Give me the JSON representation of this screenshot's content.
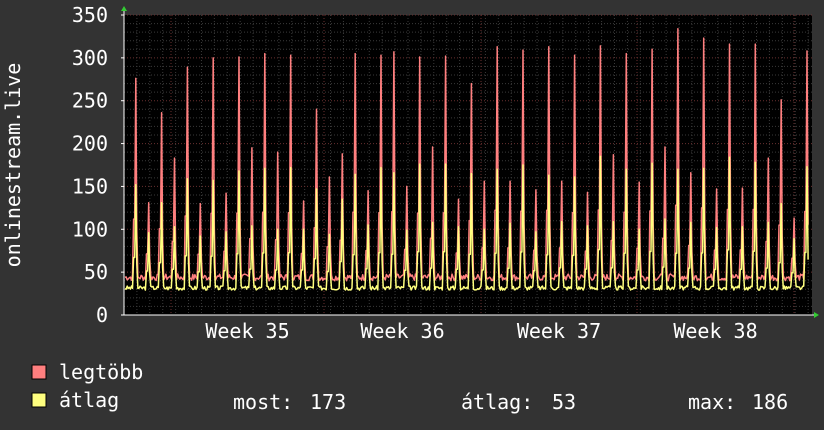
{
  "chart_data": {
    "type": "line",
    "ylabel": "onlinestream.live",
    "ylim": [
      0,
      350
    ],
    "yticks": [
      0,
      50,
      100,
      150,
      200,
      250,
      300,
      350
    ],
    "x_tick_labels": [
      "Week 35",
      "Week 36",
      "Week 37",
      "Week 38"
    ],
    "grid": true,
    "legend_placement": "bottom-left",
    "series": [
      {
        "name": "legtöbb",
        "color": "#ff7f7f",
        "daily_peaks": [
          276,
          131,
          236,
          183,
          289,
          130,
          300,
          142,
          301,
          195,
          305,
          190,
          303,
          133,
          240,
          161,
          188,
          305,
          145,
          303,
          307,
          150,
          301,
          196,
          302,
          135,
          270,
          156,
          313,
          156,
          309,
          146,
          313,
          156,
          303,
          143,
          314,
          187,
          305,
          155,
          310,
          196,
          334,
          166,
          323,
          147,
          316,
          148,
          316,
          183,
          251,
          113,
          308
        ]
      },
      {
        "name": "átlag",
        "color": "#ffff7f",
        "daily_peaks": [
          152,
          96,
          131,
          103,
          159,
          92,
          157,
          97,
          168,
          104,
          171,
          100,
          172,
          100,
          147,
          94,
          135,
          164,
          105,
          172,
          166,
          99,
          176,
          108,
          176,
          103,
          165,
          100,
          170,
          107,
          175,
          97,
          163,
          109,
          161,
          104,
          185,
          109,
          170,
          100,
          177,
          112,
          170,
          108,
          171,
          102,
          184,
          103,
          178,
          108,
          130,
          89,
          173
        ]
      }
    ]
  },
  "legend": {
    "items": [
      {
        "label": "legtöbb",
        "color": "#ff7f7f"
      },
      {
        "label": "átlag",
        "color": "#ffff7f"
      }
    ],
    "stats": {
      "most_label": "most:",
      "most_value": "173",
      "avg_label": "átlag:",
      "avg_value": "53",
      "max_label": "max:",
      "max_value": "186"
    }
  },
  "colors": {
    "background": "#333333",
    "plot_background": "#000000",
    "grid_minor": "#3a3a3a",
    "grid_major": "#6a3030",
    "axis": "#ffffff"
  }
}
